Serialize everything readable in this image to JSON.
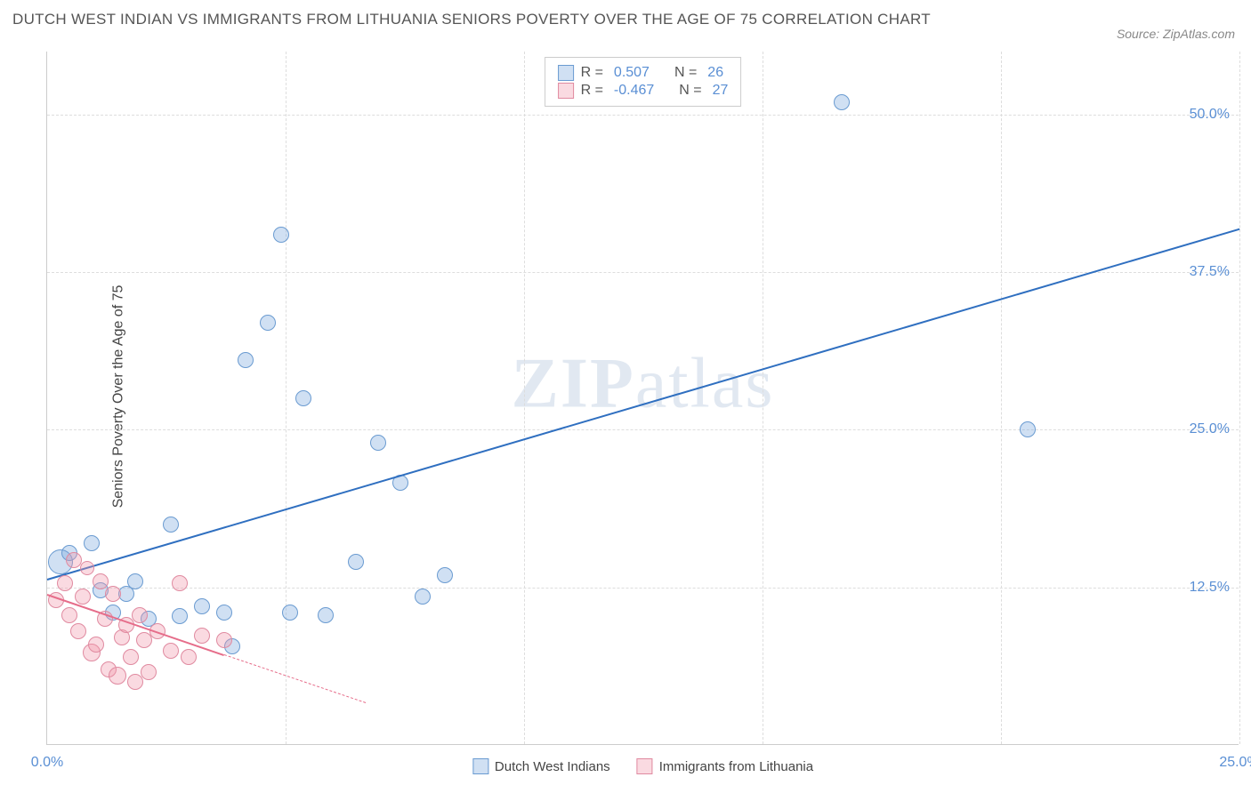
{
  "title": "DUTCH WEST INDIAN VS IMMIGRANTS FROM LITHUANIA SENIORS POVERTY OVER THE AGE OF 75 CORRELATION CHART",
  "source": "Source: ZipAtlas.com",
  "y_axis_label": "Seniors Poverty Over the Age of 75",
  "watermark_bold": "ZIP",
  "watermark_rest": "atlas",
  "chart": {
    "type": "scatter",
    "background_color": "#ffffff",
    "grid_color": "#dddddd",
    "axis_color": "#cccccc",
    "xlim": [
      0,
      27
    ],
    "ylim": [
      0,
      55
    ],
    "y_ticks": [
      12.5,
      25.0,
      37.5,
      50.0
    ],
    "y_tick_labels": [
      "12.5%",
      "25.0%",
      "37.5%",
      "50.0%"
    ],
    "x_ticks": [
      0,
      5.4,
      10.8,
      16.2,
      21.6,
      27
    ],
    "x_tick_labels": [
      "0.0%",
      "",
      "",
      "",
      "",
      "25.0%"
    ],
    "series": [
      {
        "name": "Dutch West Indians",
        "fill_color": "rgba(120,165,220,0.35)",
        "stroke_color": "#6a9bd1",
        "trend_color": "#2f6fc0",
        "marker_radius": 9,
        "R": "0.507",
        "N": "26",
        "trend": {
          "x1": 0,
          "y1": 13.2,
          "x2": 27,
          "y2": 41.0
        },
        "points": [
          {
            "x": 0.3,
            "y": 14.5,
            "r": 14
          },
          {
            "x": 0.5,
            "y": 15.2,
            "r": 9
          },
          {
            "x": 1.0,
            "y": 16.0,
            "r": 9
          },
          {
            "x": 1.2,
            "y": 12.3,
            "r": 9
          },
          {
            "x": 1.5,
            "y": 10.5,
            "r": 9
          },
          {
            "x": 1.8,
            "y": 12.0,
            "r": 9
          },
          {
            "x": 2.0,
            "y": 13.0,
            "r": 9
          },
          {
            "x": 2.3,
            "y": 10.0,
            "r": 9
          },
          {
            "x": 2.8,
            "y": 17.5,
            "r": 9
          },
          {
            "x": 3.0,
            "y": 10.2,
            "r": 9
          },
          {
            "x": 3.5,
            "y": 11.0,
            "r": 9
          },
          {
            "x": 4.0,
            "y": 10.5,
            "r": 9
          },
          {
            "x": 4.2,
            "y": 7.8,
            "r": 9
          },
          {
            "x": 4.5,
            "y": 30.5,
            "r": 9
          },
          {
            "x": 5.0,
            "y": 33.5,
            "r": 9
          },
          {
            "x": 5.3,
            "y": 40.5,
            "r": 9
          },
          {
            "x": 5.5,
            "y": 10.5,
            "r": 9
          },
          {
            "x": 5.8,
            "y": 27.5,
            "r": 9
          },
          {
            "x": 6.3,
            "y": 10.3,
            "r": 9
          },
          {
            "x": 7.0,
            "y": 14.5,
            "r": 9
          },
          {
            "x": 7.5,
            "y": 24.0,
            "r": 9
          },
          {
            "x": 8.0,
            "y": 20.8,
            "r": 9
          },
          {
            "x": 8.5,
            "y": 11.8,
            "r": 9
          },
          {
            "x": 9.0,
            "y": 13.5,
            "r": 9
          },
          {
            "x": 18.0,
            "y": 51.0,
            "r": 9
          },
          {
            "x": 22.2,
            "y": 25.0,
            "r": 9
          }
        ]
      },
      {
        "name": "Immigrants from Lithuania",
        "fill_color": "rgba(240,150,170,0.35)",
        "stroke_color": "#e08aa0",
        "trend_color": "#e66d8a",
        "marker_radius": 9,
        "R": "-0.467",
        "N": "27",
        "trend": {
          "x1": 0,
          "y1": 12.0,
          "x2": 4.0,
          "y2": 7.2
        },
        "trend_dash": {
          "x1": 4.0,
          "y1": 7.2,
          "x2": 7.2,
          "y2": 3.4
        },
        "points": [
          {
            "x": 0.2,
            "y": 11.5,
            "r": 9
          },
          {
            "x": 0.4,
            "y": 12.8,
            "r": 9
          },
          {
            "x": 0.5,
            "y": 10.3,
            "r": 9
          },
          {
            "x": 0.6,
            "y": 14.7,
            "r": 9
          },
          {
            "x": 0.7,
            "y": 9.0,
            "r": 9
          },
          {
            "x": 0.8,
            "y": 11.8,
            "r": 9
          },
          {
            "x": 0.9,
            "y": 14.0,
            "r": 8
          },
          {
            "x": 1.0,
            "y": 7.3,
            "r": 10
          },
          {
            "x": 1.1,
            "y": 8.0,
            "r": 9
          },
          {
            "x": 1.2,
            "y": 13.0,
            "r": 9
          },
          {
            "x": 1.3,
            "y": 10.0,
            "r": 9
          },
          {
            "x": 1.4,
            "y": 6.0,
            "r": 9
          },
          {
            "x": 1.5,
            "y": 12.0,
            "r": 9
          },
          {
            "x": 1.6,
            "y": 5.5,
            "r": 10
          },
          {
            "x": 1.7,
            "y": 8.5,
            "r": 9
          },
          {
            "x": 1.8,
            "y": 9.5,
            "r": 9
          },
          {
            "x": 1.9,
            "y": 7.0,
            "r": 9
          },
          {
            "x": 2.0,
            "y": 5.0,
            "r": 9
          },
          {
            "x": 2.1,
            "y": 10.3,
            "r": 9
          },
          {
            "x": 2.2,
            "y": 8.3,
            "r": 9
          },
          {
            "x": 2.3,
            "y": 5.8,
            "r": 9
          },
          {
            "x": 2.5,
            "y": 9.0,
            "r": 9
          },
          {
            "x": 2.8,
            "y": 7.5,
            "r": 9
          },
          {
            "x": 3.0,
            "y": 12.8,
            "r": 9
          },
          {
            "x": 3.2,
            "y": 7.0,
            "r": 9
          },
          {
            "x": 3.5,
            "y": 8.7,
            "r": 9
          },
          {
            "x": 4.0,
            "y": 8.3,
            "r": 9
          }
        ]
      }
    ],
    "legend_top": {
      "R_label": "R =",
      "N_label": "N ="
    },
    "legend_bottom": [
      "Dutch West Indians",
      "Immigrants from Lithuania"
    ]
  }
}
